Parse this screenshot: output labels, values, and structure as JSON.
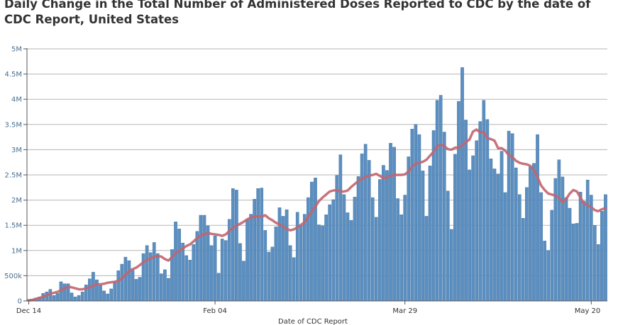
{
  "title": "Daily Change in the Total Number of Administered Doses Reported to CDC by the date of CDC Report, United States",
  "colors": {
    "bar": "#5b8fc1",
    "bar_stroke": "#3f6f9c",
    "line": "#c16570",
    "grid": "#b5b5b5",
    "axis": "#555555"
  },
  "chart_data": {
    "type": "bar",
    "title": "Daily Change in the Total Number of Administered Doses Reported to CDC by the date of CDC Report, United States",
    "xlabel": "Date of CDC Report",
    "ylabel": "",
    "x_start": "2020-12-14",
    "x_end": "2021-05-20",
    "x_ticks": [
      {
        "date": "2020-12-14",
        "label": "Dec 14"
      },
      {
        "date": "2021-02-04",
        "label": "Feb 04"
      },
      {
        "date": "2021-03-29",
        "label": "Mar 29"
      },
      {
        "date": "2021-05-20",
        "label": "May 20"
      }
    ],
    "y_ticks": [
      {
        "value": 0,
        "label": "0"
      },
      {
        "value": 500000,
        "label": "500k"
      },
      {
        "value": 1000000,
        "label": "1M"
      },
      {
        "value": 1500000,
        "label": "1.5M"
      },
      {
        "value": 2000000,
        "label": "2M"
      },
      {
        "value": 2500000,
        "label": "2.5M"
      },
      {
        "value": 3000000,
        "label": "3M"
      },
      {
        "value": 3500000,
        "label": "3.5M"
      },
      {
        "value": 4000000,
        "label": "4M"
      },
      {
        "value": 4500000,
        "label": "4.5M"
      },
      {
        "value": 5000000,
        "label": "5M"
      }
    ],
    "ylim": [
      0,
      5000000
    ],
    "grid": true,
    "series": [
      {
        "type": "bar",
        "values": [
          30000,
          40000,
          60000,
          80000,
          150000,
          180000,
          230000,
          110000,
          150000,
          380000,
          340000,
          340000,
          160000,
          80000,
          110000,
          180000,
          320000,
          440000,
          570000,
          420000,
          310000,
          200000,
          140000,
          240000,
          380000,
          600000,
          730000,
          870000,
          800000,
          610000,
          430000,
          470000,
          940000,
          1100000,
          960000,
          1160000,
          940000,
          540000,
          620000,
          450000,
          1020000,
          1570000,
          1430000,
          1150000,
          900000,
          810000,
          1120000,
          1380000,
          1700000,
          1700000,
          1490000,
          1100000,
          1290000,
          550000,
          1230000,
          1200000,
          1620000,
          2230000,
          2200000,
          1140000,
          790000,
          1610000,
          1720000,
          2020000,
          2230000,
          2240000,
          1400000,
          970000,
          1070000,
          1470000,
          1850000,
          1680000,
          1810000,
          1100000,
          860000,
          1760000,
          1500000,
          1720000,
          2050000,
          2360000,
          2440000,
          1510000,
          1490000,
          1710000,
          1910000,
          2010000,
          2490000,
          2900000,
          2110000,
          1750000,
          1600000,
          2060000,
          2470000,
          2920000,
          3110000,
          2790000,
          2050000,
          1660000,
          2410000,
          2690000,
          2590000,
          3130000,
          3050000,
          2030000,
          1710000,
          2100000,
          2860000,
          3410000,
          3500000,
          3300000,
          2580000,
          1680000,
          2680000,
          3380000,
          3980000,
          4080000,
          3350000,
          2180000,
          1420000,
          2910000,
          3960000,
          4630000,
          3590000,
          2600000,
          2880000,
          3180000,
          3560000,
          3980000,
          3600000,
          2820000,
          2620000,
          2520000,
          2970000,
          2150000,
          3370000,
          3320000,
          2640000,
          2110000,
          1640000,
          2250000,
          2660000,
          2730000,
          3300000,
          2150000,
          1190000,
          1000000,
          1800000,
          2430000,
          2800000,
          2460000,
          2050000,
          1840000,
          1530000,
          1540000,
          2160000,
          1980000,
          2400000,
          2100000,
          1500000,
          1120000,
          1780000,
          2110000
        ]
      },
      {
        "type": "line",
        "values": [
          10000,
          20000,
          40000,
          60000,
          80000,
          110000,
          140000,
          160000,
          180000,
          210000,
          250000,
          280000,
          270000,
          250000,
          230000,
          230000,
          250000,
          270000,
          300000,
          330000,
          330000,
          340000,
          360000,
          370000,
          380000,
          400000,
          450000,
          520000,
          590000,
          630000,
          660000,
          710000,
          770000,
          810000,
          840000,
          880000,
          890000,
          880000,
          830000,
          800000,
          870000,
          950000,
          990000,
          1040000,
          1090000,
          1120000,
          1180000,
          1250000,
          1300000,
          1320000,
          1350000,
          1330000,
          1320000,
          1310000,
          1290000,
          1320000,
          1390000,
          1450000,
          1490000,
          1530000,
          1570000,
          1620000,
          1650000,
          1670000,
          1680000,
          1670000,
          1700000,
          1640000,
          1600000,
          1550000,
          1520000,
          1470000,
          1430000,
          1400000,
          1420000,
          1460000,
          1510000,
          1560000,
          1670000,
          1770000,
          1870000,
          1980000,
          2050000,
          2110000,
          2170000,
          2190000,
          2200000,
          2170000,
          2170000,
          2190000,
          2260000,
          2320000,
          2380000,
          2420000,
          2460000,
          2480000,
          2500000,
          2520000,
          2480000,
          2430000,
          2450000,
          2480000,
          2500000,
          2500000,
          2500000,
          2510000,
          2570000,
          2670000,
          2720000,
          2740000,
          2760000,
          2800000,
          2880000,
          2960000,
          3060000,
          3100000,
          3070000,
          3010000,
          3000000,
          3040000,
          3040000,
          3090000,
          3150000,
          3200000,
          3360000,
          3400000,
          3340000,
          3350000,
          3230000,
          3210000,
          3180000,
          3030000,
          3030000,
          2980000,
          2890000,
          2850000,
          2780000,
          2740000,
          2720000,
          2710000,
          2680000,
          2600000,
          2460000,
          2290000,
          2200000,
          2130000,
          2110000,
          2090000,
          2040000,
          1960000,
          2020000,
          2130000,
          2200000,
          2170000,
          2050000,
          1930000,
          1900000,
          1860000,
          1800000,
          1780000,
          1820000,
          1840000
        ]
      }
    ]
  }
}
